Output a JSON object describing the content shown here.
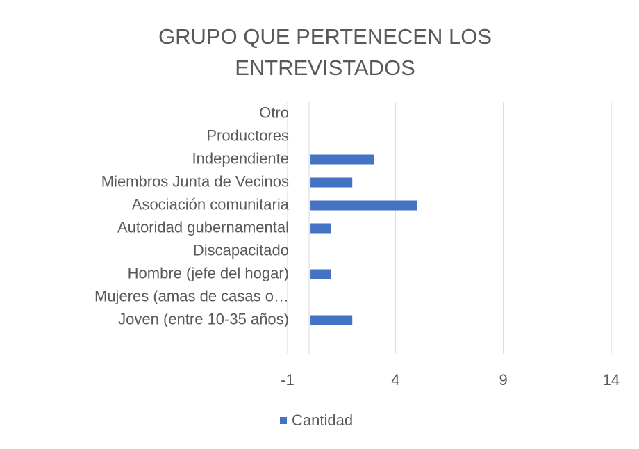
{
  "chart_data": {
    "type": "bar",
    "orientation": "horizontal",
    "title": "GRUPO QUE PERTENECEN LOS ENTREVISTADOS",
    "categories": [
      "Joven (entre 10-35 años)",
      "Mujeres (amas de casas o…",
      "Hombre (jefe del hogar)",
      "Discapacitado",
      "Autoridad gubernamental",
      "Asociación comunitaria",
      "Miembros Junta de Vecinos",
      "Independiente",
      "Productores",
      "Otro"
    ],
    "series": [
      {
        "name": "Cantidad",
        "color": "#4472c4",
        "values": [
          2,
          0,
          1,
          0,
          1,
          5,
          2,
          3,
          0,
          0
        ]
      }
    ],
    "xlim": [
      -1,
      14
    ],
    "xticks": [
      -1,
      4,
      9,
      14
    ],
    "grid": true,
    "legend": "bottom"
  }
}
